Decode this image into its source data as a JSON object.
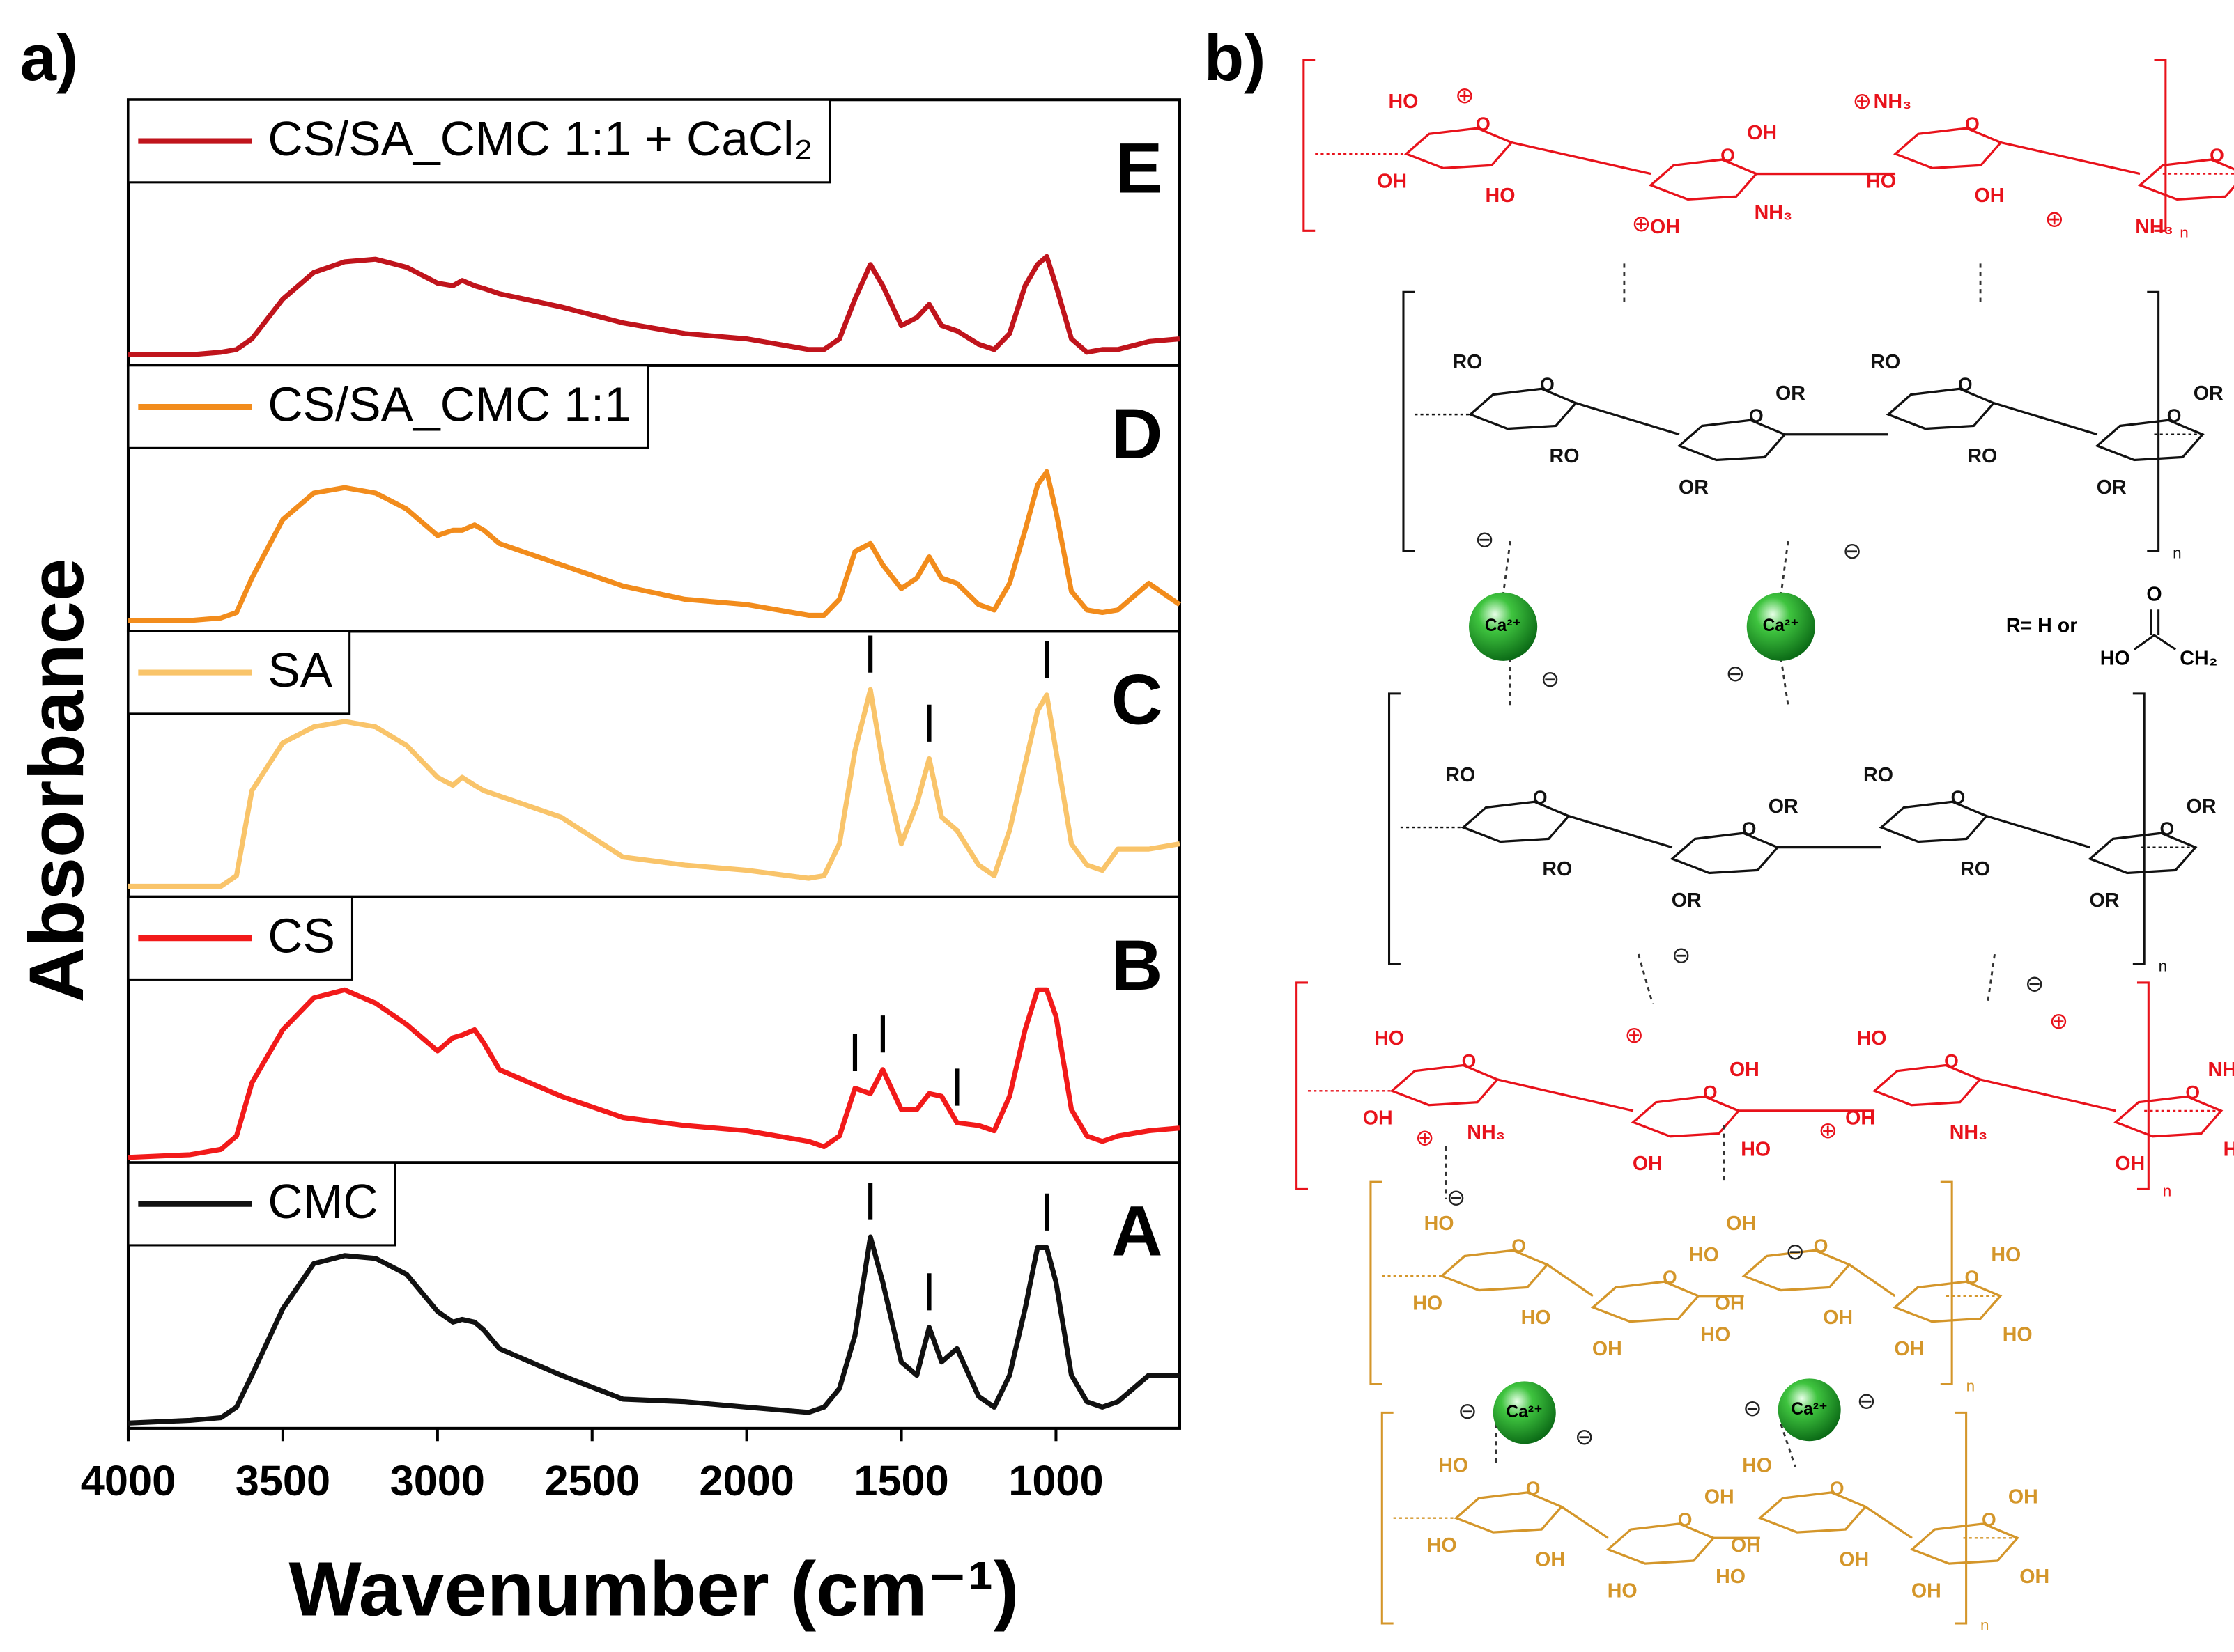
{
  "panel_labels": [
    "a)",
    "b)"
  ],
  "chart_data": {
    "type": "line",
    "x_label": "Wavenumber (cm⁻¹)",
    "y_label": "Absorbance",
    "xlim": [
      4000,
      600
    ],
    "xticks": [
      4000,
      3500,
      3000,
      2500,
      2000,
      1500,
      1000
    ],
    "ylim": [
      0,
      1
    ],
    "x": [
      4000,
      3800,
      3700,
      3650,
      3600,
      3500,
      3400,
      3300,
      3200,
      3100,
      3000,
      2950,
      2920,
      2880,
      2850,
      2800,
      2600,
      2400,
      2200,
      2000,
      1800,
      1750,
      1700,
      1650,
      1600,
      1560,
      1500,
      1450,
      1410,
      1370,
      1320,
      1250,
      1200,
      1150,
      1100,
      1060,
      1030,
      1000,
      950,
      900,
      850,
      800,
      700,
      600
    ],
    "series": [
      {
        "name": "CS/SA_CMC 1:1 + CaCl₂",
        "panel": "E",
        "color": "#c0141c",
        "peaks": [],
        "values": [
          0.04,
          0.04,
          0.05,
          0.06,
          0.1,
          0.25,
          0.35,
          0.39,
          0.4,
          0.37,
          0.31,
          0.3,
          0.32,
          0.3,
          0.29,
          0.27,
          0.22,
          0.16,
          0.12,
          0.1,
          0.06,
          0.06,
          0.1,
          0.25,
          0.38,
          0.3,
          0.15,
          0.18,
          0.23,
          0.15,
          0.13,
          0.08,
          0.06,
          0.12,
          0.3,
          0.38,
          0.41,
          0.3,
          0.1,
          0.05,
          0.06,
          0.06,
          0.09,
          0.1
        ]
      },
      {
        "name": "CS/SA_CMC 1:1",
        "panel": "D",
        "color": "#f28c1c",
        "peaks": [],
        "values": [
          0.04,
          0.04,
          0.05,
          0.07,
          0.2,
          0.42,
          0.52,
          0.54,
          0.52,
          0.46,
          0.36,
          0.38,
          0.38,
          0.4,
          0.38,
          0.33,
          0.25,
          0.17,
          0.12,
          0.1,
          0.06,
          0.06,
          0.12,
          0.3,
          0.33,
          0.25,
          0.16,
          0.2,
          0.28,
          0.2,
          0.18,
          0.1,
          0.08,
          0.18,
          0.38,
          0.55,
          0.6,
          0.45,
          0.15,
          0.08,
          0.07,
          0.08,
          0.18,
          0.1
        ]
      },
      {
        "name": "SA",
        "panel": "C",
        "color": "#f9c46a",
        "peaks": [
          1600,
          1410,
          1030
        ],
        "values": [
          0.04,
          0.04,
          0.04,
          0.08,
          0.4,
          0.58,
          0.64,
          0.66,
          0.64,
          0.57,
          0.45,
          0.42,
          0.45,
          0.42,
          0.4,
          0.38,
          0.3,
          0.15,
          0.12,
          0.1,
          0.07,
          0.08,
          0.2,
          0.55,
          0.78,
          0.5,
          0.2,
          0.35,
          0.52,
          0.3,
          0.25,
          0.12,
          0.08,
          0.25,
          0.5,
          0.7,
          0.76,
          0.55,
          0.2,
          0.12,
          0.1,
          0.18,
          0.18,
          0.2
        ]
      },
      {
        "name": "CS",
        "panel": "B",
        "color": "#f21a1a",
        "peaks": [
          1650,
          1560,
          1320
        ],
        "values": [
          0.02,
          0.03,
          0.05,
          0.1,
          0.3,
          0.5,
          0.62,
          0.65,
          0.6,
          0.52,
          0.42,
          0.47,
          0.48,
          0.5,
          0.45,
          0.35,
          0.25,
          0.17,
          0.14,
          0.12,
          0.08,
          0.06,
          0.1,
          0.28,
          0.26,
          0.35,
          0.2,
          0.2,
          0.26,
          0.25,
          0.15,
          0.14,
          0.12,
          0.25,
          0.5,
          0.65,
          0.65,
          0.55,
          0.2,
          0.1,
          0.08,
          0.1,
          0.12,
          0.13
        ]
      },
      {
        "name": "CMC",
        "panel": "A",
        "color": "#111111",
        "peaks": [
          1600,
          1410,
          1030
        ],
        "values": [
          0.02,
          0.03,
          0.04,
          0.08,
          0.2,
          0.45,
          0.62,
          0.65,
          0.64,
          0.58,
          0.44,
          0.4,
          0.41,
          0.4,
          0.37,
          0.3,
          0.2,
          0.11,
          0.1,
          0.08,
          0.06,
          0.08,
          0.15,
          0.35,
          0.72,
          0.55,
          0.25,
          0.2,
          0.38,
          0.25,
          0.3,
          0.12,
          0.08,
          0.2,
          0.45,
          0.68,
          0.68,
          0.55,
          0.2,
          0.1,
          0.08,
          0.1,
          0.2,
          0.2
        ]
      }
    ]
  },
  "diagram": {
    "ring_atom": "O",
    "cation": "⊕",
    "anion": "⊖",
    "ca_label": "Ca²⁺",
    "r_text": "R= H or",
    "r_ho": "HO",
    "r_ch2": "CH₂",
    "r_o": "O",
    "layers": [
      {
        "color": "#e8121b",
        "subscript": "n",
        "labels": [
          "HO",
          "OH",
          "NH₃",
          "OH",
          "HO",
          "OH",
          "OH",
          "NH₃",
          "OH",
          "NH₃",
          "HO",
          "HO"
        ]
      },
      {
        "color": "#111111",
        "subscript": "n",
        "labels": [
          "RO",
          "OR",
          "RO",
          "OR",
          "RO",
          "OR",
          "RO",
          "OR"
        ]
      },
      {
        "color": "#111111",
        "subscript": "n",
        "labels": [
          "RO",
          "OR",
          "RO",
          "OR",
          "RO",
          "OR",
          "RO",
          "OR"
        ]
      },
      {
        "color": "#e8121b",
        "subscript": "n",
        "labels": [
          "HO",
          "OH",
          "HO",
          "NH₃",
          "NH₃",
          "OH",
          "NH₃",
          "OH",
          "OH",
          "HO",
          "OH",
          "HO"
        ]
      },
      {
        "color": "#d4962a",
        "subscript": "n",
        "labels": [
          "HO",
          "HO",
          "OH",
          "HO",
          "HO",
          "OH",
          "OH",
          "OH",
          "HO",
          "HO",
          "OH",
          "HO"
        ]
      },
      {
        "color": "#d4962a",
        "subscript": "n",
        "labels": [
          "HO",
          "OH",
          "HO",
          "OH",
          "OH",
          "HO",
          "OH",
          "OH",
          "HO",
          "HO",
          "OH",
          "OH"
        ]
      }
    ]
  }
}
